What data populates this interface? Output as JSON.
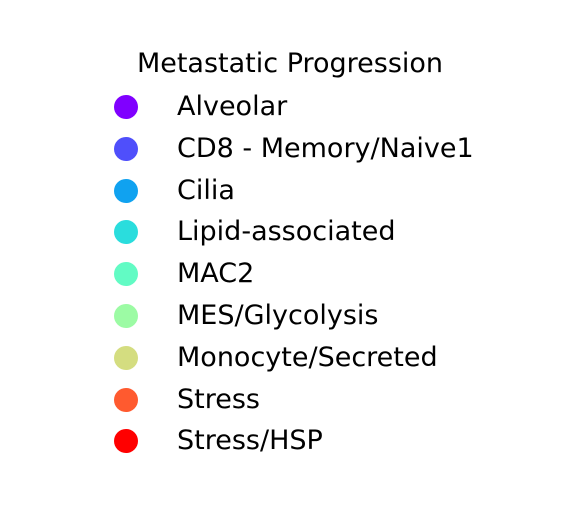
{
  "chart_data": {
    "type": "legend",
    "title": "Metastatic Progression",
    "entries": [
      {
        "label": "Alveolar",
        "color": "#8000ff",
        "marker": "circle"
      },
      {
        "label": "CD8 - Memory/Naive1",
        "color": "#4f4ffb",
        "marker": "circle"
      },
      {
        "label": "Cilia",
        "color": "#10a2f0",
        "marker": "circle"
      },
      {
        "label": "Lipid-associated",
        "color": "#2adddd",
        "marker": "circle"
      },
      {
        "label": "MAC2",
        "color": "#62fbc4",
        "marker": "circle"
      },
      {
        "label": "MES/Glycolysis",
        "color": "#9cfba4",
        "marker": "circle"
      },
      {
        "label": "Monocyte/Secreted",
        "color": "#d4dd80",
        "marker": "circle"
      },
      {
        "label": "Stress",
        "color": "#ff5a2f",
        "marker": "circle"
      },
      {
        "label": "Stress/HSP",
        "color": "#ff0000",
        "marker": "circle"
      }
    ]
  }
}
